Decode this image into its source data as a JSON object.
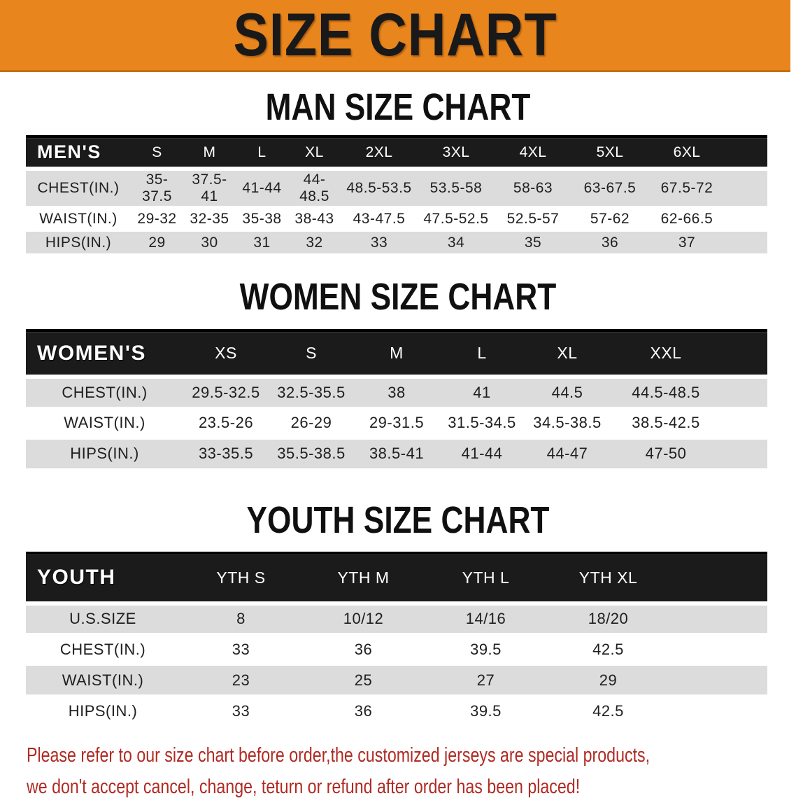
{
  "banner": {
    "title": "SIZE CHART"
  },
  "sections": [
    {
      "title": "MAN SIZE CHART",
      "group_label": "MEN'S",
      "columns": [
        "S",
        "M",
        "L",
        "XL",
        "2XL",
        "3XL",
        "4XL",
        "5XL",
        "6XL"
      ],
      "rows": [
        {
          "label": "CHEST(IN.)",
          "values": [
            "35-37.5",
            "37.5-41",
            "41-44",
            "44-48.5",
            "48.5-53.5",
            "53.5-58",
            "58-63",
            "63-67.5",
            "67.5-72"
          ]
        },
        {
          "label": "WAIST(IN.)",
          "values": [
            "29-32",
            "32-35",
            "35-38",
            "38-43",
            "43-47.5",
            "47.5-52.5",
            "52.5-57",
            "57-62",
            "62-66.5"
          ]
        },
        {
          "label": "HIPS(IN.)",
          "values": [
            "29",
            "30",
            "31",
            "32",
            "33",
            "34",
            "35",
            "36",
            "37"
          ]
        }
      ]
    },
    {
      "title": "WOMEN SIZE CHART",
      "group_label": "WOMEN'S",
      "columns": [
        "XS",
        "S",
        "M",
        "L",
        "XL",
        "XXL"
      ],
      "rows": [
        {
          "label": "CHEST(IN.)",
          "values": [
            "29.5-32.5",
            "32.5-35.5",
            "38",
            "41",
            "44.5",
            "44.5-48.5"
          ]
        },
        {
          "label": "WAIST(IN.)",
          "values": [
            "23.5-26",
            "26-29",
            "29-31.5",
            "31.5-34.5",
            "34.5-38.5",
            "38.5-42.5"
          ]
        },
        {
          "label": "HIPS(IN.)",
          "values": [
            "33-35.5",
            "35.5-38.5",
            "38.5-41",
            "41-44",
            "44-47",
            "47-50"
          ]
        }
      ]
    },
    {
      "title": "YOUTH SIZE CHART",
      "group_label": "YOUTH",
      "columns": [
        "YTH S",
        "YTH M",
        "YTH L",
        "YTH XL"
      ],
      "rows": [
        {
          "label": "U.S.SIZE",
          "values": [
            "8",
            "10/12",
            "14/16",
            "18/20"
          ]
        },
        {
          "label": "CHEST(IN.)",
          "values": [
            "33",
            "36",
            "39.5",
            "42.5"
          ]
        },
        {
          "label": "WAIST(IN.)",
          "values": [
            "23",
            "25",
            "27",
            "29"
          ]
        },
        {
          "label": "HIPS(IN.)",
          "values": [
            "33",
            "36",
            "39.5",
            "42.5"
          ]
        }
      ]
    }
  ],
  "footer": {
    "line1": "Please refer to our size chart before order,the customized jerseys are special products,",
    "line2": "we don't accept cancel, change, teturn or refund after order has been placed!"
  },
  "colors": {
    "banner_bg": "#E8851C",
    "banner_text": "#191919",
    "header_bar_bg": "#1B1B1B",
    "header_bar_text": "#FFFFFF",
    "row_stripe": "#DCDCDC",
    "notice_text": "#B02A23"
  }
}
